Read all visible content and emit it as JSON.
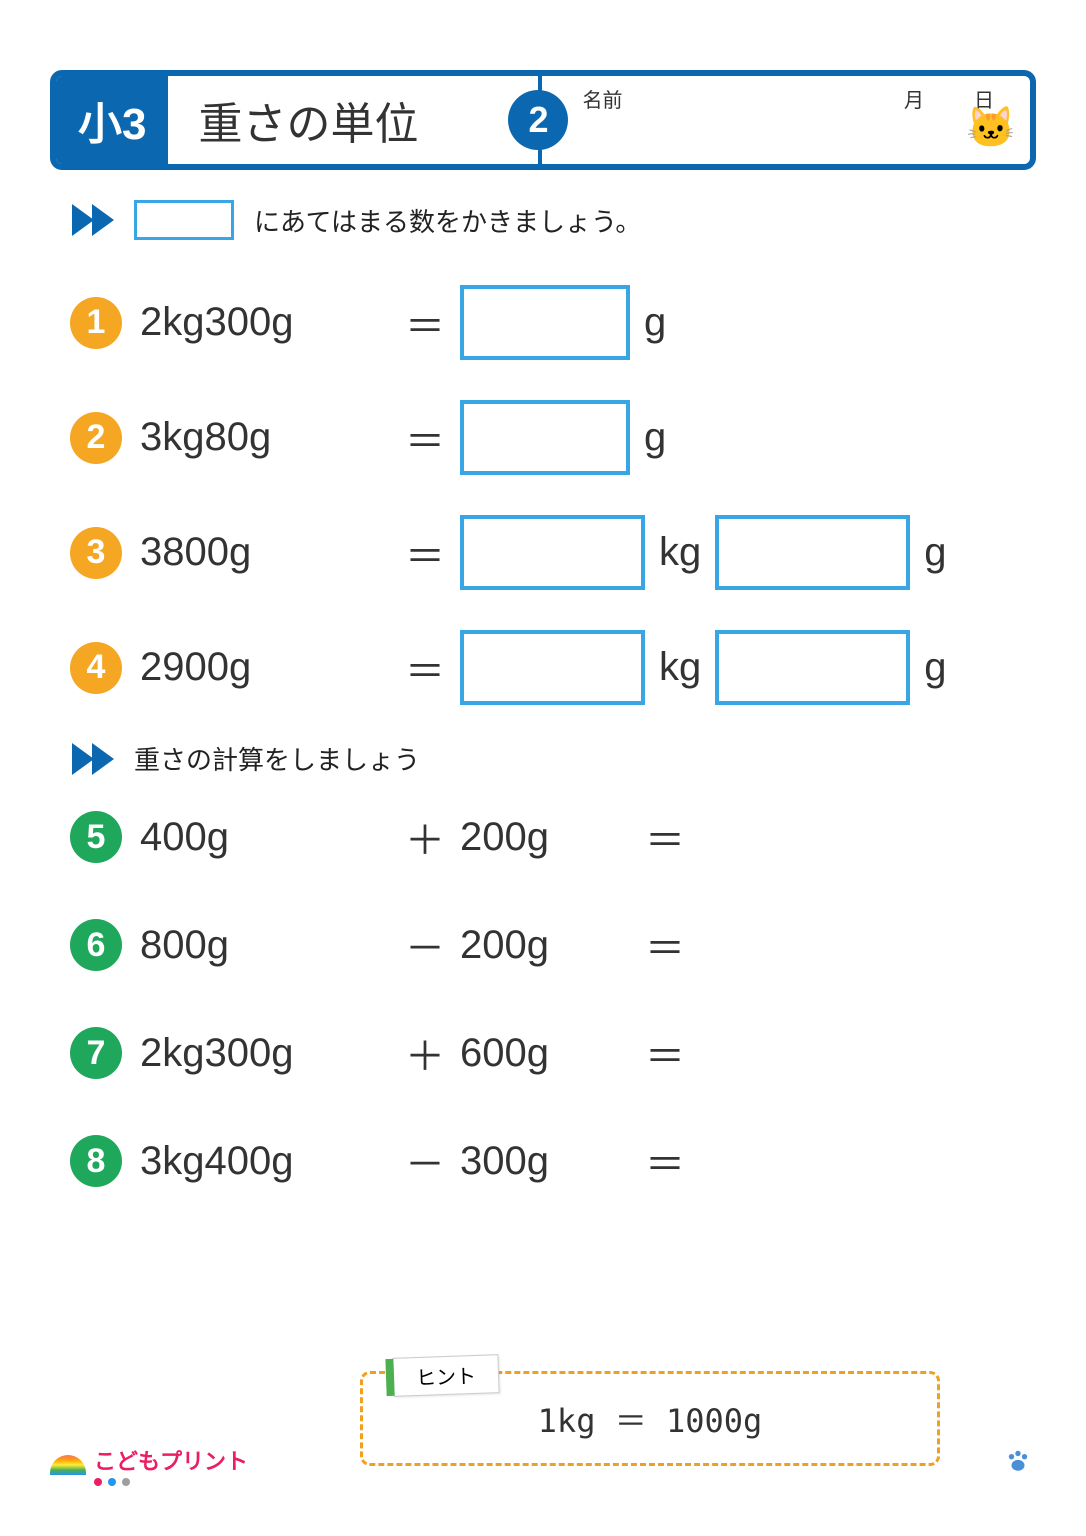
{
  "header": {
    "grade": "小3",
    "title": "重さの単位",
    "page_number": "2",
    "name_label": "名前",
    "month_label": "月",
    "day_label": "日"
  },
  "colors": {
    "primary_blue": "#0b68b0",
    "box_blue": "#38a6e4",
    "badge_orange": "#f5a623",
    "badge_green": "#1fa85c",
    "hint_border": "#f0a020",
    "hint_tab_accent": "#4caf50",
    "text": "#333333",
    "logo_pink": "#e91e63"
  },
  "section1": {
    "instruction": "にあてはまる数をかきましょう。"
  },
  "problems_conversion": [
    {
      "n": "1",
      "lhs": "2kg300g",
      "op": "＝",
      "boxes": [
        {
          "w": "ab-w1"
        }
      ],
      "units": [
        "g"
      ],
      "badge_color": "#f5a623"
    },
    {
      "n": "2",
      "lhs": "3kg80g",
      "op": "＝",
      "boxes": [
        {
          "w": "ab-w1"
        }
      ],
      "units": [
        "g"
      ],
      "badge_color": "#f5a623"
    },
    {
      "n": "3",
      "lhs": "3800g",
      "op": "＝",
      "boxes": [
        {
          "w": "ab-w2"
        },
        {
          "w": "ab-w3"
        }
      ],
      "units": [
        "kg",
        "g"
      ],
      "badge_color": "#f5a623"
    },
    {
      "n": "4",
      "lhs": "2900g",
      "op": "＝",
      "boxes": [
        {
          "w": "ab-w2"
        },
        {
          "w": "ab-w3"
        }
      ],
      "units": [
        "kg",
        "g"
      ],
      "badge_color": "#f5a623"
    }
  ],
  "section2": {
    "instruction": "重さの計算をしましょう"
  },
  "problems_calc": [
    {
      "n": "5",
      "lhs": "400g",
      "op": "＋",
      "rhs": "200g",
      "eq": "＝",
      "badge_color": "#1fa85c"
    },
    {
      "n": "6",
      "lhs": "800g",
      "op": "－",
      "rhs": "200g",
      "eq": "＝",
      "badge_color": "#1fa85c"
    },
    {
      "n": "7",
      "lhs": "2kg300g",
      "op": "＋",
      "rhs": "600g",
      "eq": "＝",
      "badge_color": "#1fa85c"
    },
    {
      "n": "8",
      "lhs": "3kg400g",
      "op": "－",
      "rhs": "300g",
      "eq": "＝",
      "badge_color": "#1fa85c"
    }
  ],
  "hint": {
    "label": "ヒント",
    "text": "1kg ＝ 1000g"
  },
  "footer": {
    "logo_text": "こどもプリント",
    "dot_colors": [
      "#e91e63",
      "#2196f3",
      "#9e9e9e"
    ]
  }
}
